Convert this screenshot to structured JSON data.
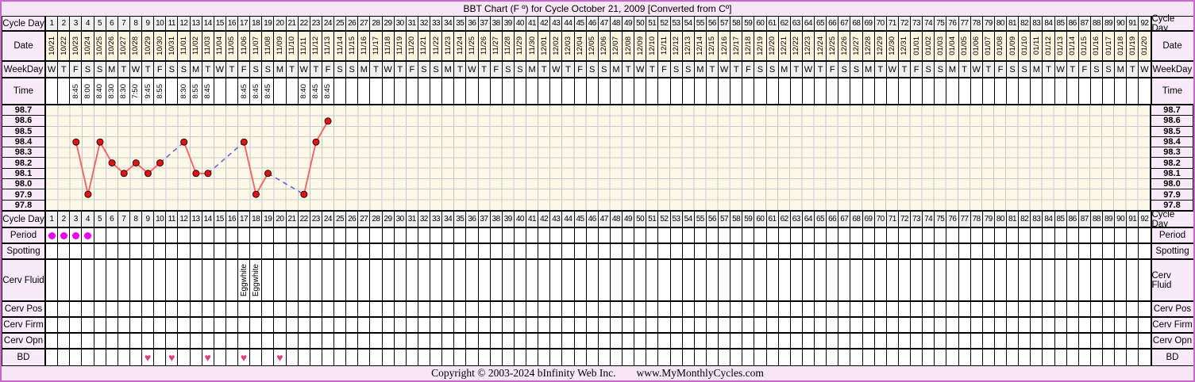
{
  "title": "BBT Chart (F º) for Cycle October 21, 2009  [Converted from Cº]",
  "footer": {
    "copyright": "Copyright © 2003-2024 bInfinity Web Inc.",
    "site": "www.MyMonthlyCycles.com"
  },
  "row_labels": {
    "cycle_day": "Cycle Day",
    "date": "Date",
    "weekday": "WeekDay",
    "time": "Time",
    "period": "Period",
    "spotting": "Spotting",
    "cerv_fluid": "Cerv Fluid",
    "cerv_pos": "Cerv Pos",
    "cerv_firm": "Cerv Firm",
    "cerv_opn": "Cerv Opn",
    "bd": "BD"
  },
  "num_days": 92,
  "dates": [
    "10/21",
    "10/22",
    "10/23",
    "10/24",
    "10/25",
    "10/26",
    "10/27",
    "10/28",
    "10/29",
    "10/30",
    "10/31",
    "11/01",
    "11/02",
    "11/03",
    "11/04",
    "11/05",
    "11/06",
    "11/07",
    "11/08",
    "11/09",
    "11/10",
    "11/11",
    "11/12",
    "11/13",
    "11/14",
    "11/15",
    "11/16",
    "11/17",
    "11/18",
    "11/19",
    "11/20",
    "11/21",
    "11/22",
    "11/23",
    "11/24",
    "11/25",
    "11/26",
    "11/27",
    "11/28",
    "11/29",
    "11/30",
    "12/01",
    "12/02",
    "12/03",
    "12/04",
    "12/05",
    "12/06",
    "12/07",
    "12/08",
    "12/09",
    "12/10",
    "12/11",
    "12/12",
    "12/13",
    "12/14",
    "12/15",
    "12/16",
    "12/17",
    "12/18",
    "12/19",
    "12/20",
    "12/21",
    "12/22",
    "12/23",
    "12/24",
    "12/25",
    "12/26",
    "12/27",
    "12/28",
    "12/29",
    "12/30",
    "12/31",
    "01/01",
    "01/02",
    "01/03",
    "01/04",
    "01/05",
    "01/06",
    "01/07",
    "01/08",
    "01/09",
    "01/10",
    "01/11",
    "01/12",
    "01/13",
    "01/14",
    "01/15",
    "01/16",
    "01/17",
    "01/18",
    "01/19",
    "01/20"
  ],
  "weekdays": [
    "W",
    "T",
    "F",
    "S",
    "S",
    "M",
    "T",
    "W",
    "T",
    "F",
    "S",
    "S",
    "M",
    "T",
    "W",
    "T",
    "F",
    "S",
    "S",
    "M",
    "T",
    "W",
    "T",
    "F",
    "S",
    "S",
    "M",
    "T",
    "W",
    "T",
    "F",
    "S",
    "S",
    "M",
    "T",
    "W",
    "T",
    "F",
    "S",
    "S",
    "M",
    "T",
    "W",
    "T",
    "F",
    "S",
    "S",
    "M",
    "T",
    "W",
    "T",
    "F",
    "S",
    "S",
    "M",
    "T",
    "W",
    "T",
    "F",
    "S",
    "S",
    "M",
    "T",
    "W",
    "T",
    "F",
    "S",
    "S",
    "M",
    "T",
    "W",
    "T",
    "F",
    "S",
    "S",
    "M",
    "T",
    "W",
    "T",
    "F",
    "S",
    "S",
    "M",
    "T",
    "W",
    "T",
    "F",
    "S",
    "S",
    "M",
    "T",
    "W"
  ],
  "times": {
    "3": "8:45",
    "4": "8:00",
    "5": "8:40",
    "6": "8:30",
    "7": "8:30",
    "8": "7:50",
    "9": "9:45",
    "10": "8:55",
    "12": "8:30",
    "13": "8:55",
    "14": "8:45",
    "17": "8:45",
    "18": "8:45",
    "19": "8:45",
    "22": "8:40",
    "23": "8:45",
    "24": "8:45"
  },
  "chart_data": {
    "type": "line",
    "x_label": "Cycle Day",
    "x_range": [
      1,
      92
    ],
    "yticks": [
      "98.7",
      "98.6",
      "98.5",
      "98.4",
      "98.3",
      "98.2",
      "98.1",
      "98.0",
      "97.9",
      "97.8"
    ],
    "y_step": 0.1,
    "points": [
      {
        "day": 3,
        "temp": 98.4
      },
      {
        "day": 4,
        "temp": 97.9
      },
      {
        "day": 5,
        "temp": 98.4
      },
      {
        "day": 6,
        "temp": 98.2
      },
      {
        "day": 7,
        "temp": 98.1
      },
      {
        "day": 8,
        "temp": 98.2
      },
      {
        "day": 9,
        "temp": 98.1
      },
      {
        "day": 10,
        "temp": 98.2
      },
      {
        "day": 12,
        "temp": 98.4
      },
      {
        "day": 13,
        "temp": 98.1
      },
      {
        "day": 14,
        "temp": 98.1
      },
      {
        "day": 17,
        "temp": 98.4
      },
      {
        "day": 18,
        "temp": 97.9
      },
      {
        "day": 19,
        "temp": 98.1
      },
      {
        "day": 22,
        "temp": 97.9
      },
      {
        "day": 23,
        "temp": 98.4
      },
      {
        "day": 24,
        "temp": 98.6
      }
    ],
    "missing_day_connector": "dashed",
    "colors": {
      "solid_line": "#f26a6a",
      "dashed_line": "#6666dd",
      "point_fill": "#dd1515",
      "point_stroke": "#330000",
      "grid": "#c9c9c9",
      "plot_bg": "#fdf9e9"
    }
  },
  "period_days": [
    1,
    2,
    3,
    4
  ],
  "period_marker": "dot",
  "cerv_fluid": {
    "label": "Eggwhite",
    "days": [
      17,
      18
    ]
  },
  "bd_days": [
    9,
    11,
    14,
    17,
    20
  ],
  "bd_symbol": "♥",
  "colors": {
    "frame": "#c869c8",
    "banner_bg": "#f6e6f6",
    "label_bg": "#f9eaf9",
    "header_cell_bg": "#efefef",
    "date_cell_bg": "#fbf4df",
    "period_dot": "#ee00ee",
    "bd_heart": "#e0407a"
  }
}
